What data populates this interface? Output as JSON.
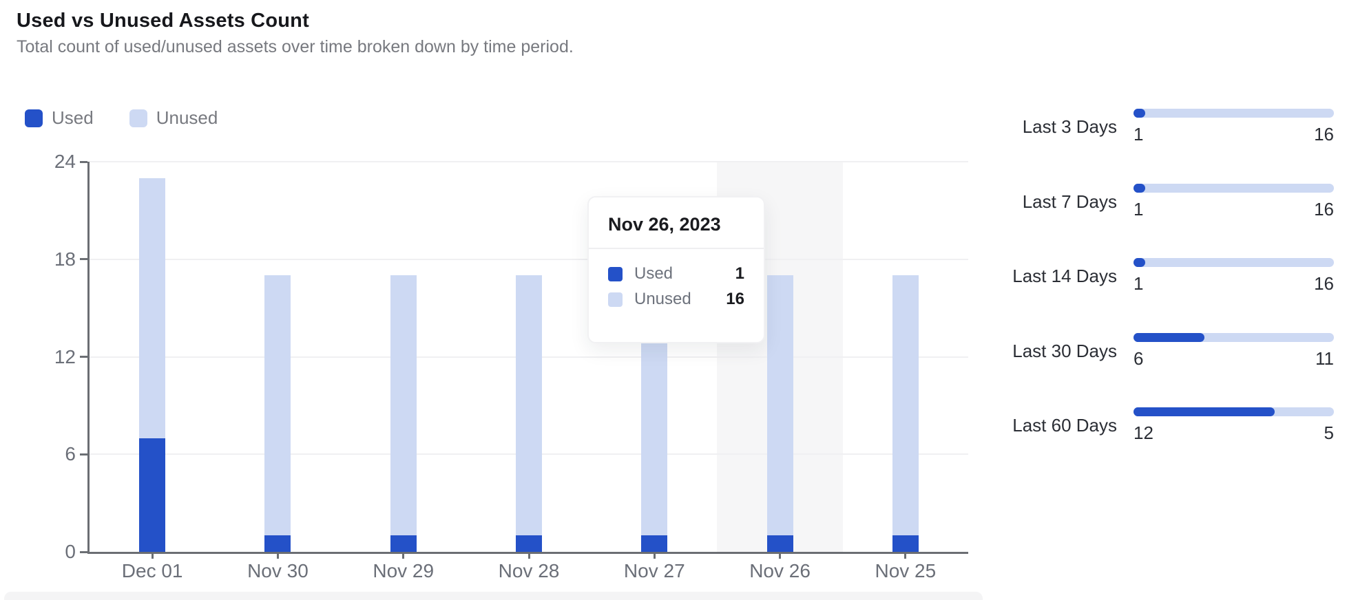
{
  "header": {
    "title": "Used vs Unused Assets Count",
    "subtitle": "Total count of used/unused assets over time broken down by time period."
  },
  "colors": {
    "used": "#2451C8",
    "unused": "#CDD9F3",
    "highlight_band": "#F6F6F7"
  },
  "chart_data": {
    "type": "bar",
    "stacked": true,
    "title": "Used vs Unused Assets Count",
    "categories": [
      "Dec 01",
      "Nov 30",
      "Nov 29",
      "Nov 28",
      "Nov 27",
      "Nov 26",
      "Nov 25"
    ],
    "series": [
      {
        "name": "Used",
        "values": [
          7,
          1,
          1,
          1,
          1,
          1,
          1
        ]
      },
      {
        "name": "Unused",
        "values": [
          16,
          16,
          16,
          16,
          16,
          16,
          16
        ]
      }
    ],
    "y_ticks": [
      0,
      6,
      12,
      18,
      24
    ],
    "ylim": [
      0,
      24
    ],
    "grid": true,
    "legend_position": "top-left",
    "highlighted_category": "Nov 26"
  },
  "tooltip": {
    "title": "Nov 26, 2023",
    "rows": [
      {
        "label": "Used",
        "value": "1"
      },
      {
        "label": "Unused",
        "value": "16"
      }
    ]
  },
  "time_periods": [
    {
      "label": "Last 3 Days",
      "used": 1,
      "unused": 16
    },
    {
      "label": "Last 7 Days",
      "used": 1,
      "unused": 16
    },
    {
      "label": "Last 14 Days",
      "used": 1,
      "unused": 16
    },
    {
      "label": "Last 30 Days",
      "used": 6,
      "unused": 11
    },
    {
      "label": "Last 60 Days",
      "used": 12,
      "unused": 5
    }
  ]
}
